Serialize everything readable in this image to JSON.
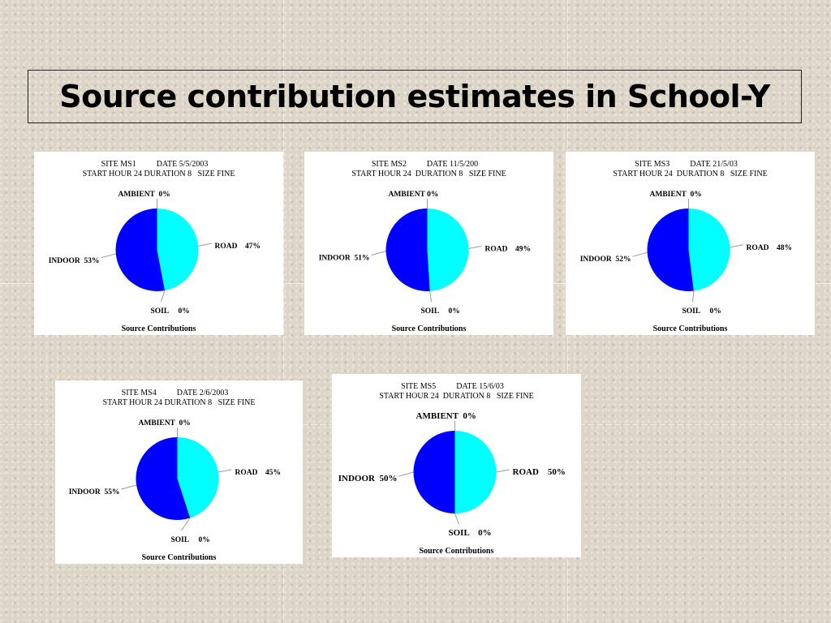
{
  "title": "Source contribution estimates in School-Y",
  "colors": {
    "road": "#00ffff",
    "indoor": "#0000ff",
    "ambient": "#0000ff",
    "soil": "#0000ff",
    "edge": "#999999"
  },
  "chart_data": [
    {
      "type": "pie",
      "header_line1": "SITE MS1          DATE 5/5/2003",
      "header_line2": "START HOUR 24 DURATION 8   SIZE FINE",
      "footer": "Source Contributions",
      "slices": [
        {
          "name": "AMBIENT",
          "value": 0,
          "label": "AMBIENT  0%"
        },
        {
          "name": "ROAD",
          "value": 47,
          "label": "ROAD    47%"
        },
        {
          "name": "SOIL",
          "value": 0,
          "label": "SOIL     0%"
        },
        {
          "name": "INDOOR",
          "value": 53,
          "label": "INDOOR  53%"
        }
      ]
    },
    {
      "type": "pie",
      "header_line1": "SITE MS2          DATE 11/5/200",
      "header_line2": "START HOUR 24  DURATION 8   SIZE FINE",
      "footer": "Source Contributions",
      "slices": [
        {
          "name": "AMBIENT",
          "value": 0,
          "label": "AMBIENT 0%"
        },
        {
          "name": "ROAD",
          "value": 49,
          "label": "ROAD    49%"
        },
        {
          "name": "SOIL",
          "value": 0,
          "label": "SOIL     0%"
        },
        {
          "name": "INDOOR",
          "value": 51,
          "label": "INDOOR  51%"
        }
      ]
    },
    {
      "type": "pie",
      "header_line1": "SITE MS3          DATE 21/5/03",
      "header_line2": "START HOUR 24  DURATION 8   SIZE FINE",
      "footer": "Source Contributions",
      "slices": [
        {
          "name": "AMBIENT",
          "value": 0,
          "label": "AMBIENT  0%"
        },
        {
          "name": "ROAD",
          "value": 48,
          "label": "ROAD    48%"
        },
        {
          "name": "SOIL",
          "value": 0,
          "label": "SOIL     0%"
        },
        {
          "name": "INDOOR",
          "value": 52,
          "label": "INDOOR  52%"
        }
      ]
    },
    {
      "type": "pie",
      "header_line1": "SITE MS4          DATE 2/6/2003",
      "header_line2": "START HOUR 24 DURATION 8   SIZE FINE",
      "footer": "Source Contributions",
      "slices": [
        {
          "name": "AMBIENT",
          "value": 0,
          "label": "AMBIENT  0%"
        },
        {
          "name": "ROAD",
          "value": 45,
          "label": "ROAD    45%"
        },
        {
          "name": "SOIL",
          "value": 0,
          "label": "SOIL     0%"
        },
        {
          "name": "INDOOR",
          "value": 55,
          "label": "INDOOR  55%"
        }
      ]
    },
    {
      "type": "pie",
      "header_line1": "SITE MS5          DATE 15/6/03",
      "header_line2": "START HOUR 24  DURATION 8   SIZE FINE",
      "footer": "Source Contributions",
      "slices": [
        {
          "name": "AMBIENT",
          "value": 0,
          "label": "AMBIENT  0%"
        },
        {
          "name": "ROAD",
          "value": 50,
          "label": "ROAD    50%"
        },
        {
          "name": "SOIL",
          "value": 0,
          "label": "SOIL    0%"
        },
        {
          "name": "INDOOR",
          "value": 50,
          "label": "INDOOR  50%"
        }
      ]
    }
  ]
}
